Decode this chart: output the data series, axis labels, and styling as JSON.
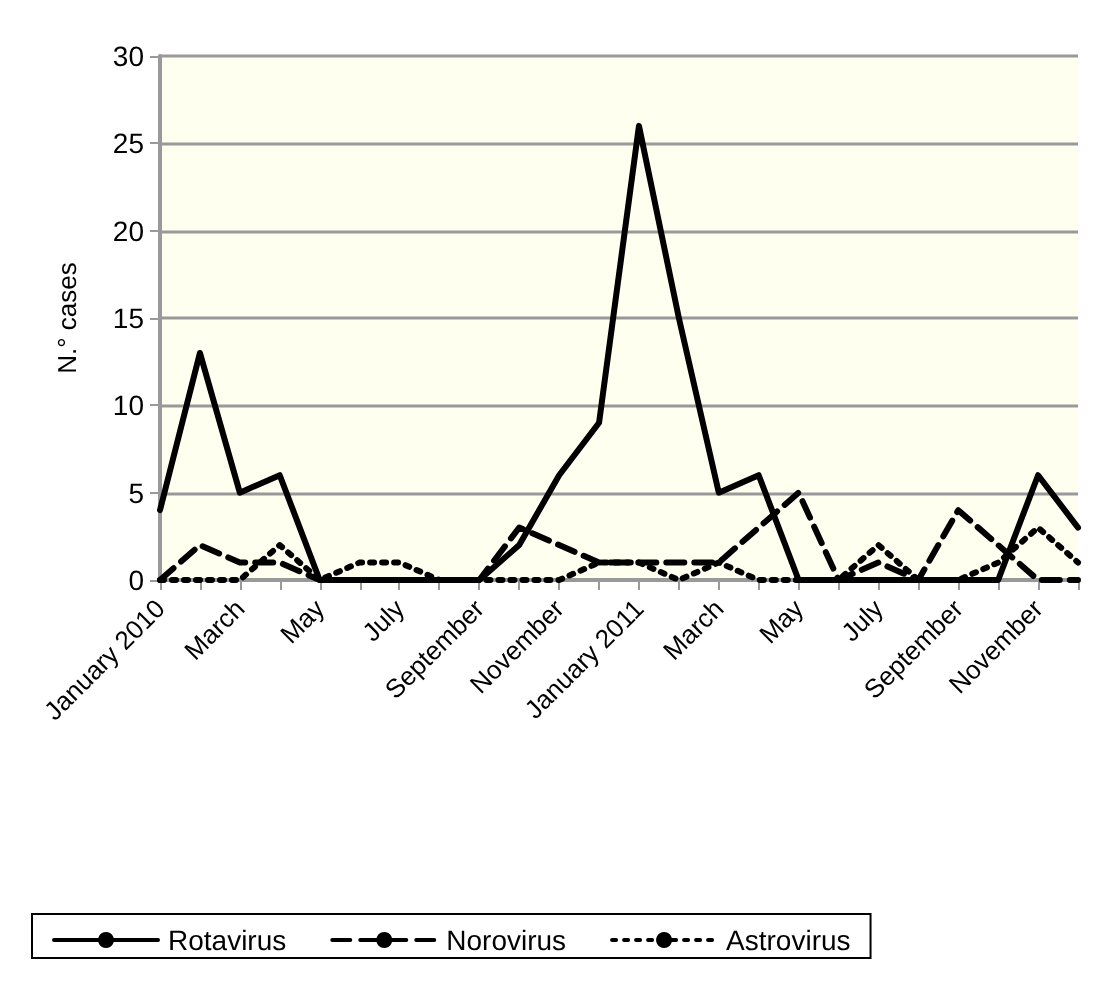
{
  "chart_data": {
    "type": "line",
    "ylabel": "N.° cases",
    "categories": [
      "January 2010",
      null,
      "March",
      null,
      "May",
      null,
      "July",
      null,
      "September",
      null,
      "November",
      null,
      "January 2011",
      null,
      "March",
      null,
      "May",
      null,
      "July",
      null,
      "September",
      null,
      "November",
      null
    ],
    "series": [
      {
        "name": "Rotavirus",
        "color": "#000000",
        "line_style": "solid",
        "values": [
          4,
          13,
          5,
          6,
          0,
          0,
          0,
          0,
          0,
          2,
          6,
          9,
          26,
          15,
          5,
          6,
          0,
          0,
          0,
          0,
          0,
          0,
          6,
          3
        ]
      },
      {
        "name": "Norovirus",
        "color": "#000000",
        "line_style": "dashed",
        "values": [
          0,
          2,
          1,
          1,
          0,
          0,
          0,
          0,
          0,
          3,
          2,
          1,
          1,
          1,
          1,
          3,
          5,
          0,
          1,
          0,
          4,
          2,
          0,
          0
        ]
      },
      {
        "name": "Astrovirus",
        "color": "#000000",
        "line_style": "dotted",
        "values": [
          0,
          0,
          0,
          2,
          0,
          1,
          1,
          0,
          0,
          0,
          0,
          1,
          1,
          0,
          1,
          0,
          0,
          0,
          2,
          0,
          0,
          1,
          3,
          1
        ]
      }
    ],
    "ylim": [
      0,
      30
    ],
    "yticks": [
      0,
      5,
      10,
      15,
      20,
      25,
      30
    ],
    "grid": "y",
    "legend": "bottom",
    "marker": "none"
  }
}
